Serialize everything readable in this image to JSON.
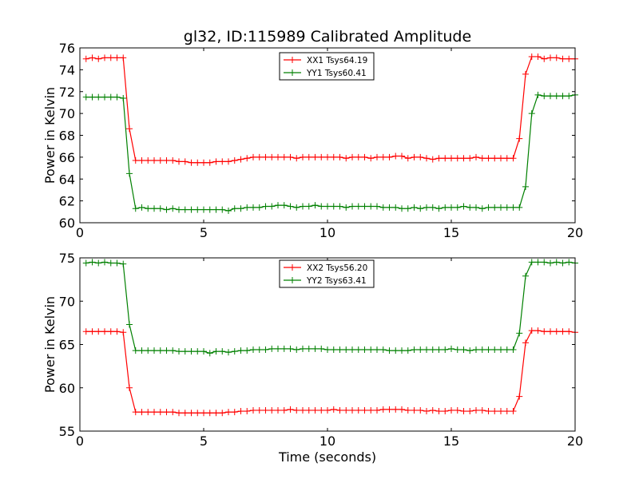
{
  "chart_data": [
    {
      "type": "line",
      "title": "gl32, ID:115989 Calibrated Amplitude",
      "xlabel": "",
      "ylabel": "Power in Kelvin",
      "xlim": [
        0,
        20
      ],
      "ylim": [
        60,
        76
      ],
      "xticks": [
        0,
        5,
        10,
        15,
        20
      ],
      "yticks": [
        60,
        62,
        64,
        66,
        68,
        70,
        72,
        74,
        76
      ],
      "legend_position": "top-center",
      "marker": "+",
      "grid": false,
      "series": [
        {
          "name": "XX1 Tsys64.19",
          "color": "#ff0000",
          "x": [
            0.25,
            0.5,
            0.75,
            1.0,
            1.25,
            1.5,
            1.75,
            2.0,
            2.25,
            2.5,
            2.75,
            3.0,
            3.25,
            3.5,
            3.75,
            4.0,
            4.25,
            4.5,
            4.75,
            5.0,
            5.25,
            5.5,
            5.75,
            6.0,
            6.25,
            6.5,
            6.75,
            7.0,
            7.25,
            7.5,
            7.75,
            8.0,
            8.25,
            8.5,
            8.75,
            9.0,
            9.25,
            9.5,
            9.75,
            10.0,
            10.25,
            10.5,
            10.75,
            11.0,
            11.25,
            11.5,
            11.75,
            12.0,
            12.25,
            12.5,
            12.75,
            13.0,
            13.25,
            13.5,
            13.75,
            14.0,
            14.25,
            14.5,
            14.75,
            15.0,
            15.25,
            15.5,
            15.75,
            16.0,
            16.25,
            16.5,
            16.75,
            17.0,
            17.25,
            17.5,
            17.75,
            18.0,
            18.25,
            18.5,
            18.75,
            19.0,
            19.25,
            19.5,
            19.75,
            20.0
          ],
          "y": [
            75.0,
            75.1,
            75.0,
            75.1,
            75.1,
            75.1,
            75.1,
            68.6,
            65.7,
            65.7,
            65.7,
            65.7,
            65.7,
            65.7,
            65.7,
            65.6,
            65.6,
            65.5,
            65.5,
            65.5,
            65.5,
            65.6,
            65.6,
            65.6,
            65.7,
            65.8,
            65.9,
            66.0,
            66.0,
            66.0,
            66.0,
            66.0,
            66.0,
            66.0,
            65.9,
            66.0,
            66.0,
            66.0,
            66.0,
            66.0,
            66.0,
            66.0,
            65.9,
            66.0,
            66.0,
            66.0,
            65.9,
            66.0,
            66.0,
            66.0,
            66.1,
            66.1,
            65.9,
            66.0,
            66.0,
            65.9,
            65.8,
            65.9,
            65.9,
            65.9,
            65.9,
            65.9,
            65.9,
            66.0,
            65.9,
            65.9,
            65.9,
            65.9,
            65.9,
            65.9,
            67.7,
            73.6,
            75.2,
            75.2,
            75.0,
            75.1,
            75.1,
            75.0,
            75.0,
            75.0
          ]
        },
        {
          "name": "YY1 Tsys60.41",
          "color": "#008000",
          "x": [
            0.25,
            0.5,
            0.75,
            1.0,
            1.25,
            1.5,
            1.75,
            2.0,
            2.25,
            2.5,
            2.75,
            3.0,
            3.25,
            3.5,
            3.75,
            4.0,
            4.25,
            4.5,
            4.75,
            5.0,
            5.25,
            5.5,
            5.75,
            6.0,
            6.25,
            6.5,
            6.75,
            7.0,
            7.25,
            7.5,
            7.75,
            8.0,
            8.25,
            8.5,
            8.75,
            9.0,
            9.25,
            9.5,
            9.75,
            10.0,
            10.25,
            10.5,
            10.75,
            11.0,
            11.25,
            11.5,
            11.75,
            12.0,
            12.25,
            12.5,
            12.75,
            13.0,
            13.25,
            13.5,
            13.75,
            14.0,
            14.25,
            14.5,
            14.75,
            15.0,
            15.25,
            15.5,
            15.75,
            16.0,
            16.25,
            16.5,
            16.75,
            17.0,
            17.25,
            17.5,
            17.75,
            18.0,
            18.25,
            18.5,
            18.75,
            19.0,
            19.25,
            19.5,
            19.75,
            20.0
          ],
          "y": [
            71.5,
            71.5,
            71.5,
            71.5,
            71.5,
            71.5,
            71.4,
            64.5,
            61.3,
            61.4,
            61.3,
            61.3,
            61.3,
            61.2,
            61.3,
            61.2,
            61.2,
            61.2,
            61.2,
            61.2,
            61.2,
            61.2,
            61.2,
            61.1,
            61.3,
            61.3,
            61.4,
            61.4,
            61.4,
            61.5,
            61.5,
            61.6,
            61.6,
            61.5,
            61.4,
            61.5,
            61.5,
            61.6,
            61.5,
            61.5,
            61.5,
            61.5,
            61.4,
            61.5,
            61.5,
            61.5,
            61.5,
            61.5,
            61.4,
            61.4,
            61.4,
            61.3,
            61.3,
            61.4,
            61.3,
            61.4,
            61.4,
            61.3,
            61.4,
            61.4,
            61.4,
            61.5,
            61.4,
            61.4,
            61.3,
            61.4,
            61.4,
            61.4,
            61.4,
            61.4,
            61.4,
            63.3,
            70.0,
            71.7,
            71.6,
            71.6,
            71.6,
            71.6,
            71.6,
            71.7
          ]
        }
      ]
    },
    {
      "type": "line",
      "title": "",
      "xlabel": "Time (seconds)",
      "ylabel": "Power in Kelvin",
      "xlim": [
        0,
        20
      ],
      "ylim": [
        55,
        75
      ],
      "xticks": [
        0,
        5,
        10,
        15,
        20
      ],
      "yticks": [
        55,
        60,
        65,
        70,
        75
      ],
      "legend_position": "top-center",
      "marker": "+",
      "grid": false,
      "series": [
        {
          "name": "XX2 Tsys56.20",
          "color": "#ff0000",
          "x": [
            0.25,
            0.5,
            0.75,
            1.0,
            1.25,
            1.5,
            1.75,
            2.0,
            2.25,
            2.5,
            2.75,
            3.0,
            3.25,
            3.5,
            3.75,
            4.0,
            4.25,
            4.5,
            4.75,
            5.0,
            5.25,
            5.5,
            5.75,
            6.0,
            6.25,
            6.5,
            6.75,
            7.0,
            7.25,
            7.5,
            7.75,
            8.0,
            8.25,
            8.5,
            8.75,
            9.0,
            9.25,
            9.5,
            9.75,
            10.0,
            10.25,
            10.5,
            10.75,
            11.0,
            11.25,
            11.5,
            11.75,
            12.0,
            12.25,
            12.5,
            12.75,
            13.0,
            13.25,
            13.5,
            13.75,
            14.0,
            14.25,
            14.5,
            14.75,
            15.0,
            15.25,
            15.5,
            15.75,
            16.0,
            16.25,
            16.5,
            16.75,
            17.0,
            17.25,
            17.5,
            17.75,
            18.0,
            18.25,
            18.5,
            18.75,
            19.0,
            19.25,
            19.5,
            19.75,
            20.0
          ],
          "y": [
            66.5,
            66.5,
            66.5,
            66.5,
            66.5,
            66.5,
            66.4,
            60.0,
            57.2,
            57.2,
            57.2,
            57.2,
            57.2,
            57.2,
            57.2,
            57.1,
            57.1,
            57.1,
            57.1,
            57.1,
            57.1,
            57.1,
            57.1,
            57.2,
            57.2,
            57.3,
            57.3,
            57.4,
            57.4,
            57.4,
            57.4,
            57.4,
            57.4,
            57.5,
            57.4,
            57.4,
            57.4,
            57.4,
            57.4,
            57.4,
            57.5,
            57.4,
            57.4,
            57.4,
            57.4,
            57.4,
            57.4,
            57.4,
            57.5,
            57.5,
            57.5,
            57.5,
            57.4,
            57.4,
            57.4,
            57.3,
            57.4,
            57.3,
            57.3,
            57.4,
            57.4,
            57.3,
            57.3,
            57.4,
            57.4,
            57.3,
            57.3,
            57.3,
            57.3,
            57.3,
            59.0,
            65.2,
            66.6,
            66.6,
            66.5,
            66.5,
            66.5,
            66.5,
            66.5,
            66.4
          ]
        },
        {
          "name": "YY2 Tsys63.41",
          "color": "#008000",
          "x": [
            0.25,
            0.5,
            0.75,
            1.0,
            1.25,
            1.5,
            1.75,
            2.0,
            2.25,
            2.5,
            2.75,
            3.0,
            3.25,
            3.5,
            3.75,
            4.0,
            4.25,
            4.5,
            4.75,
            5.0,
            5.25,
            5.5,
            5.75,
            6.0,
            6.25,
            6.5,
            6.75,
            7.0,
            7.25,
            7.5,
            7.75,
            8.0,
            8.25,
            8.5,
            8.75,
            9.0,
            9.25,
            9.5,
            9.75,
            10.0,
            10.25,
            10.5,
            10.75,
            11.0,
            11.25,
            11.5,
            11.75,
            12.0,
            12.25,
            12.5,
            12.75,
            13.0,
            13.25,
            13.5,
            13.75,
            14.0,
            14.25,
            14.5,
            14.75,
            15.0,
            15.25,
            15.5,
            15.75,
            16.0,
            16.25,
            16.5,
            16.75,
            17.0,
            17.25,
            17.5,
            17.75,
            18.0,
            18.25,
            18.5,
            18.75,
            19.0,
            19.25,
            19.5,
            19.75,
            20.0
          ],
          "y": [
            74.4,
            74.5,
            74.4,
            74.5,
            74.4,
            74.4,
            74.3,
            67.3,
            64.3,
            64.3,
            64.3,
            64.3,
            64.3,
            64.3,
            64.3,
            64.2,
            64.2,
            64.2,
            64.2,
            64.2,
            64.0,
            64.2,
            64.2,
            64.1,
            64.2,
            64.3,
            64.3,
            64.4,
            64.4,
            64.4,
            64.5,
            64.5,
            64.5,
            64.5,
            64.4,
            64.5,
            64.5,
            64.5,
            64.5,
            64.4,
            64.4,
            64.4,
            64.4,
            64.4,
            64.4,
            64.4,
            64.4,
            64.4,
            64.4,
            64.3,
            64.3,
            64.3,
            64.3,
            64.4,
            64.4,
            64.4,
            64.4,
            64.4,
            64.4,
            64.5,
            64.4,
            64.4,
            64.3,
            64.4,
            64.4,
            64.4,
            64.4,
            64.4,
            64.4,
            64.4,
            66.3,
            72.9,
            74.5,
            74.5,
            74.5,
            74.4,
            74.5,
            74.4,
            74.5,
            74.4
          ]
        }
      ]
    }
  ]
}
